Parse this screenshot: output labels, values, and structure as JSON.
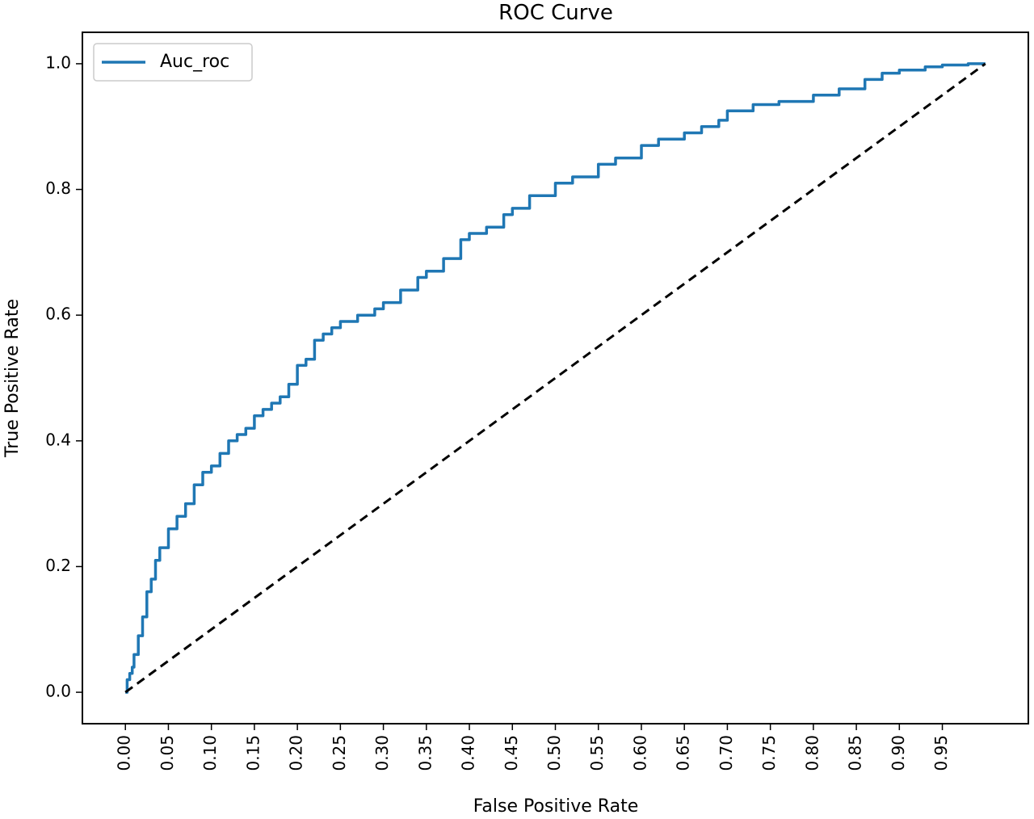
{
  "chart_data": {
    "type": "line",
    "title": "ROC Curve",
    "xlabel": "False Positive Rate",
    "ylabel": "True Positive Rate",
    "xlim": [
      -0.05,
      1.05
    ],
    "ylim": [
      -0.05,
      1.05
    ],
    "x_ticks": [
      0.0,
      0.05,
      0.1,
      0.15,
      0.2,
      0.25,
      0.3,
      0.35,
      0.4,
      0.45,
      0.5,
      0.55,
      0.6,
      0.65,
      0.7,
      0.75,
      0.8,
      0.85,
      0.9,
      0.95
    ],
    "x_tick_labels": [
      "0.00",
      "0.05",
      "0.10",
      "0.15",
      "0.20",
      "0.25",
      "0.30",
      "0.35",
      "0.40",
      "0.45",
      "0.50",
      "0.55",
      "0.60",
      "0.65",
      "0.70",
      "0.75",
      "0.80",
      "0.85",
      "0.90",
      "0.95"
    ],
    "y_ticks": [
      0.0,
      0.2,
      0.4,
      0.6,
      0.8,
      1.0
    ],
    "y_tick_labels": [
      "0.0",
      "0.2",
      "0.4",
      "0.6",
      "0.8",
      "1.0"
    ],
    "grid": false,
    "legend_position": "top-left",
    "series": [
      {
        "name": "Auc_roc",
        "color": "#1f77b4",
        "style": "solid",
        "x": [
          0.0,
          0.002,
          0.005,
          0.008,
          0.01,
          0.015,
          0.02,
          0.025,
          0.03,
          0.035,
          0.04,
          0.05,
          0.06,
          0.07,
          0.08,
          0.09,
          0.1,
          0.11,
          0.12,
          0.13,
          0.14,
          0.15,
          0.16,
          0.17,
          0.18,
          0.19,
          0.2,
          0.21,
          0.22,
          0.23,
          0.24,
          0.25,
          0.27,
          0.29,
          0.3,
          0.32,
          0.34,
          0.35,
          0.37,
          0.39,
          0.4,
          0.42,
          0.44,
          0.45,
          0.47,
          0.5,
          0.52,
          0.55,
          0.57,
          0.6,
          0.62,
          0.65,
          0.67,
          0.69,
          0.7,
          0.73,
          0.76,
          0.8,
          0.83,
          0.86,
          0.88,
          0.9,
          0.93,
          0.95,
          0.98,
          1.0
        ],
        "y": [
          0.0,
          0.02,
          0.03,
          0.04,
          0.06,
          0.09,
          0.12,
          0.16,
          0.18,
          0.21,
          0.23,
          0.26,
          0.28,
          0.3,
          0.33,
          0.35,
          0.36,
          0.38,
          0.4,
          0.41,
          0.42,
          0.44,
          0.45,
          0.46,
          0.47,
          0.49,
          0.52,
          0.53,
          0.56,
          0.57,
          0.58,
          0.59,
          0.6,
          0.61,
          0.62,
          0.64,
          0.66,
          0.67,
          0.69,
          0.72,
          0.73,
          0.74,
          0.76,
          0.77,
          0.79,
          0.81,
          0.82,
          0.84,
          0.85,
          0.87,
          0.88,
          0.89,
          0.9,
          0.91,
          0.925,
          0.935,
          0.94,
          0.95,
          0.96,
          0.975,
          0.985,
          0.99,
          0.995,
          0.998,
          1.0,
          1.0
        ]
      },
      {
        "name": "",
        "color": "#000000",
        "style": "dashed",
        "x": [
          0.0,
          1.0
        ],
        "y": [
          0.0,
          1.0
        ]
      }
    ]
  }
}
